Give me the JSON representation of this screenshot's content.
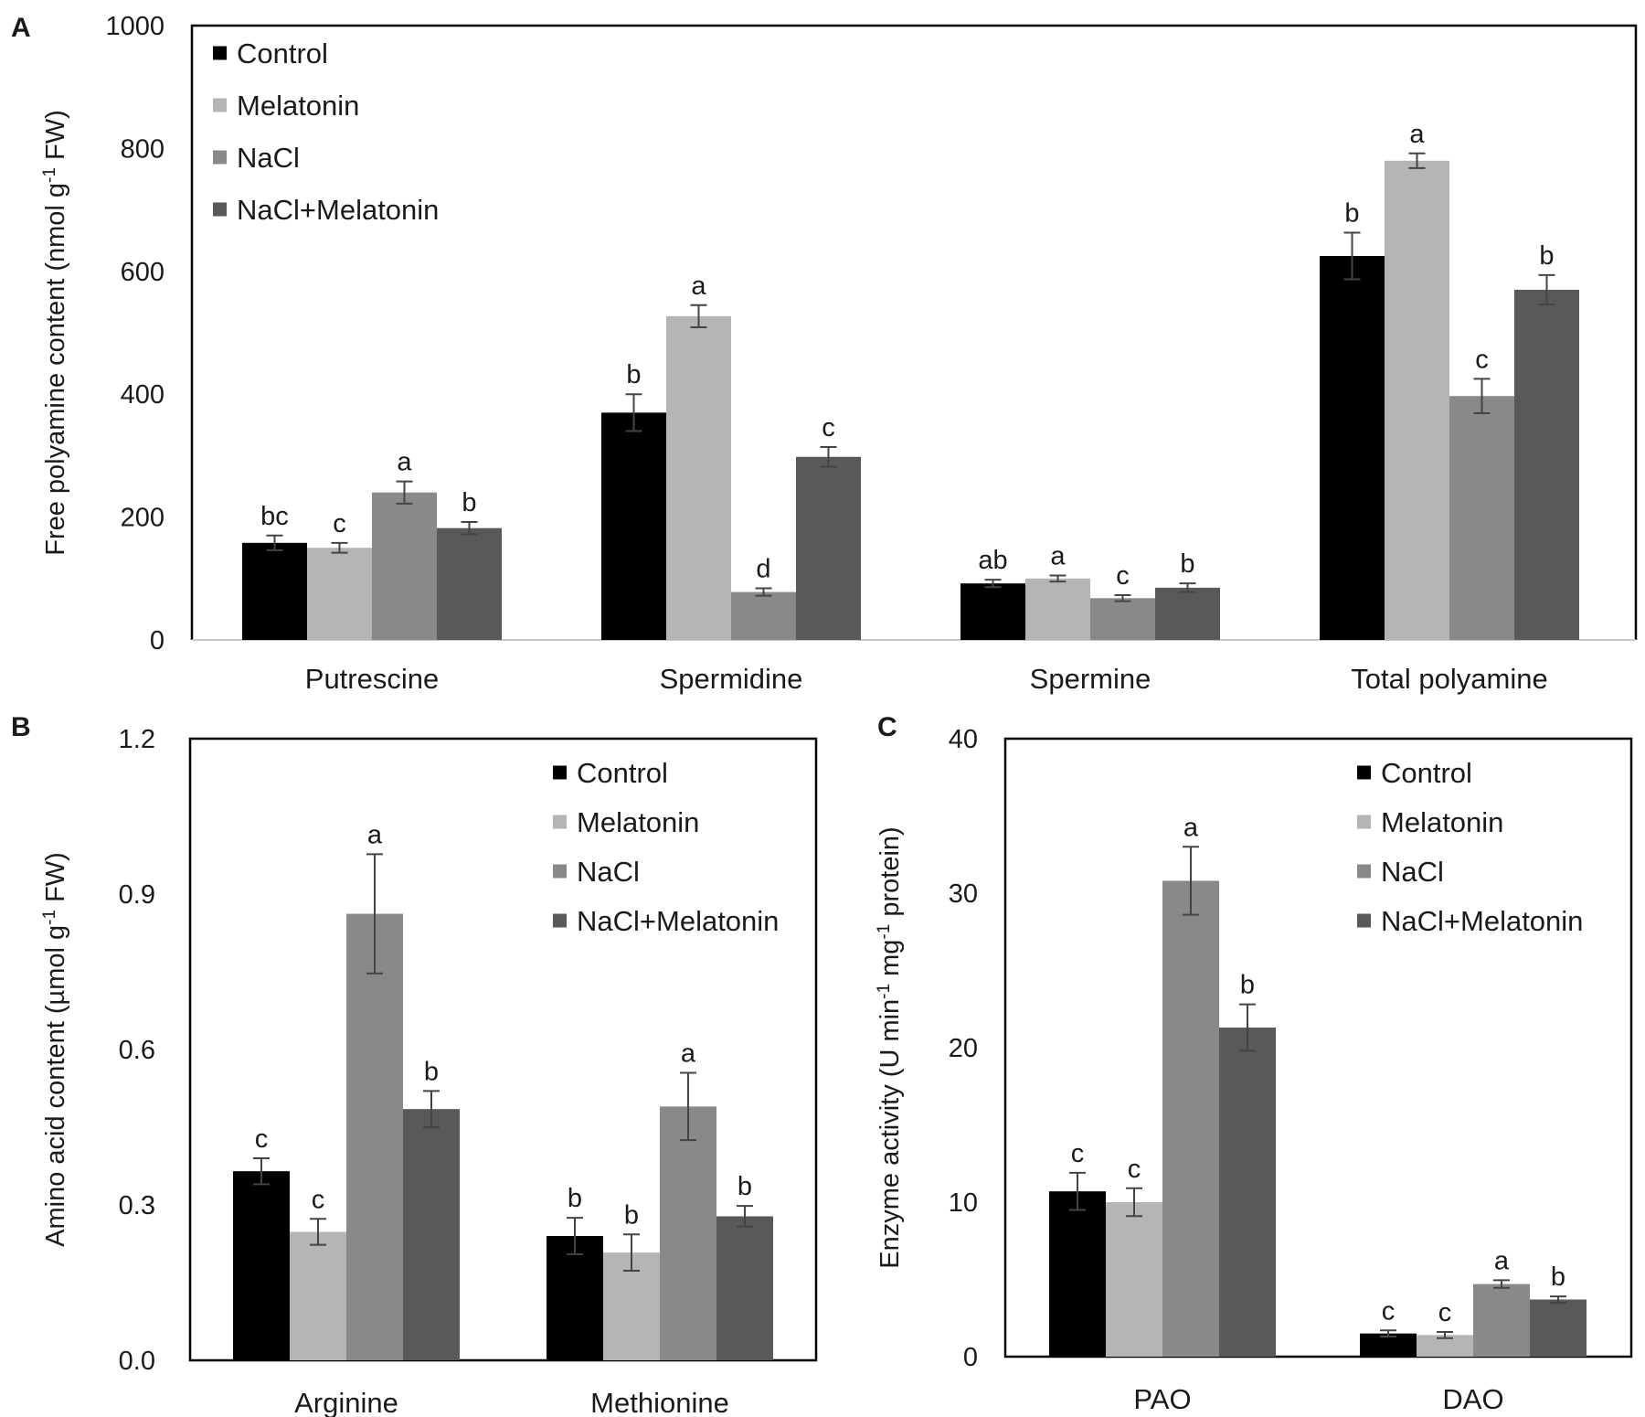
{
  "colors": {
    "Control": "#000000",
    "Melatonin": "#b5b5b5",
    "NaCl": "#898989",
    "NaCl+Melatonin": "#595959",
    "errorbar": "#444444",
    "axis": "#000000",
    "axis_light": "#c8c8c8"
  },
  "chart_data": [
    {
      "id": "A",
      "letter": "A",
      "type": "bar",
      "title": "",
      "xlabel": "",
      "ylabel": {
        "pre": "Free polyamine content (nmol g",
        "sup": "-1",
        "post": " FW)"
      },
      "ylim": [
        0,
        1000
      ],
      "yticks": [
        "0",
        "200",
        "400",
        "600",
        "800",
        "1000"
      ],
      "categories": [
        "Putrescine",
        "Spermidine",
        "Spermine",
        "Total polyamine"
      ],
      "legend": [
        "Control",
        "Melatonin",
        "NaCl",
        "NaCl+Melatonin"
      ],
      "legend_position": "top-left",
      "series": [
        {
          "name": "Control",
          "values": [
            158,
            370,
            92,
            625
          ],
          "errors": [
            12,
            30,
            6,
            38
          ],
          "labels": [
            "bc",
            "b",
            "ab",
            "b"
          ]
        },
        {
          "name": "Melatonin",
          "values": [
            150,
            527,
            100,
            780
          ],
          "errors": [
            8,
            18,
            5,
            12
          ],
          "labels": [
            "c",
            "a",
            "a",
            "a"
          ]
        },
        {
          "name": "NaCl",
          "values": [
            240,
            78,
            68,
            397
          ],
          "errors": [
            18,
            6,
            5,
            28
          ],
          "labels": [
            "a",
            "d",
            "c",
            "c"
          ]
        },
        {
          "name": "NaCl+Melatonin",
          "values": [
            182,
            298,
            85,
            570
          ],
          "errors": [
            10,
            16,
            7,
            24
          ],
          "labels": [
            "b",
            "c",
            "b",
            "b"
          ]
        }
      ]
    },
    {
      "id": "B",
      "letter": "B",
      "type": "bar",
      "title": "",
      "xlabel": "",
      "ylabel": {
        "pre": "Amino acid content (µmol g",
        "sup": "-1",
        "post": " FW)"
      },
      "ylim": [
        0,
        1.2
      ],
      "yticks": [
        "0.0",
        "0.3",
        "0.6",
        "0.9",
        "1.2"
      ],
      "categories": [
        "Arginine",
        "Methionine"
      ],
      "legend": [
        "Control",
        "Melatonin",
        "NaCl",
        "NaCl+Melatonin"
      ],
      "legend_position": "top-right",
      "series": [
        {
          "name": "Control",
          "values": [
            0.365,
            0.24
          ],
          "errors": [
            0.025,
            0.035
          ],
          "labels": [
            "c",
            "b"
          ]
        },
        {
          "name": "Melatonin",
          "values": [
            0.248,
            0.208
          ],
          "errors": [
            0.025,
            0.035
          ],
          "labels": [
            "c",
            "b"
          ]
        },
        {
          "name": "NaCl",
          "values": [
            0.862,
            0.49
          ],
          "errors": [
            0.115,
            0.065
          ],
          "labels": [
            "a",
            "a"
          ]
        },
        {
          "name": "NaCl+Melatonin",
          "values": [
            0.485,
            0.278
          ],
          "errors": [
            0.035,
            0.02
          ],
          "labels": [
            "b",
            "b"
          ]
        }
      ]
    },
    {
      "id": "C",
      "letter": "C",
      "type": "bar",
      "title": "",
      "xlabel": "",
      "ylabel": {
        "pre": "Enzyme activity (U min",
        "sup1": "-1",
        "mid": " mg",
        "sup": "-1",
        "post": " protein)"
      },
      "ylim": [
        0,
        40
      ],
      "yticks": [
        "0",
        "10",
        "20",
        "30",
        "40"
      ],
      "categories": [
        "PAO",
        "DAO"
      ],
      "legend": [
        "Control",
        "Melatonin",
        "NaCl",
        "NaCl+Melatonin"
      ],
      "legend_position": "top-right",
      "series": [
        {
          "name": "Control",
          "values": [
            10.7,
            1.5
          ],
          "errors": [
            1.2,
            0.2
          ],
          "labels": [
            "c",
            "c"
          ]
        },
        {
          "name": "Melatonin",
          "values": [
            10.0,
            1.4
          ],
          "errors": [
            0.9,
            0.2
          ],
          "labels": [
            "c",
            "c"
          ]
        },
        {
          "name": "NaCl",
          "values": [
            30.8,
            4.7
          ],
          "errors": [
            2.2,
            0.25
          ],
          "labels": [
            "a",
            "a"
          ]
        },
        {
          "name": "NaCl+Melatonin",
          "values": [
            21.3,
            3.7
          ],
          "errors": [
            1.5,
            0.2
          ],
          "labels": [
            "b",
            "b"
          ]
        }
      ]
    }
  ]
}
